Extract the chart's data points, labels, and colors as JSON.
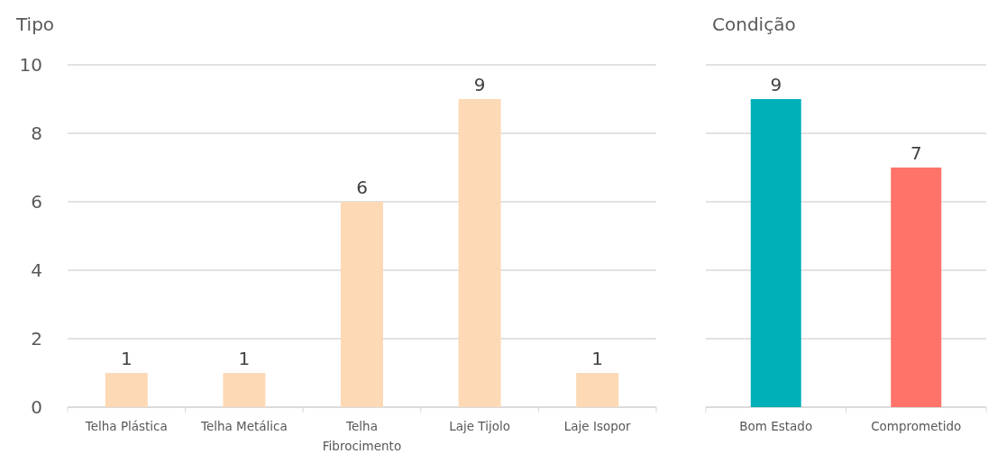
{
  "chart_data": [
    {
      "type": "bar",
      "title": "Tipo",
      "categories": [
        "Telha Plástica",
        "Telha Metálica",
        "Telha Fibrocimento",
        "Laje Tijolo",
        "Laje Isopor"
      ],
      "values": [
        1,
        1,
        6,
        9,
        1
      ],
      "color": "#fdd9b5",
      "ylim": [
        0,
        10
      ],
      "yticks": [
        0,
        2,
        4,
        6,
        8,
        10
      ],
      "grid": "y",
      "data_labels": true
    },
    {
      "type": "bar",
      "title": "Condição",
      "categories": [
        "Bom Estado",
        "Comprometido"
      ],
      "values": [
        9,
        7
      ],
      "colors": [
        "#00b0b9",
        "#ff7369"
      ],
      "ylim": [
        0,
        10
      ],
      "yticks": [
        0,
        2,
        4,
        6,
        8,
        10
      ],
      "grid": "y",
      "data_labels": true,
      "tick_labels": "x"
    }
  ]
}
